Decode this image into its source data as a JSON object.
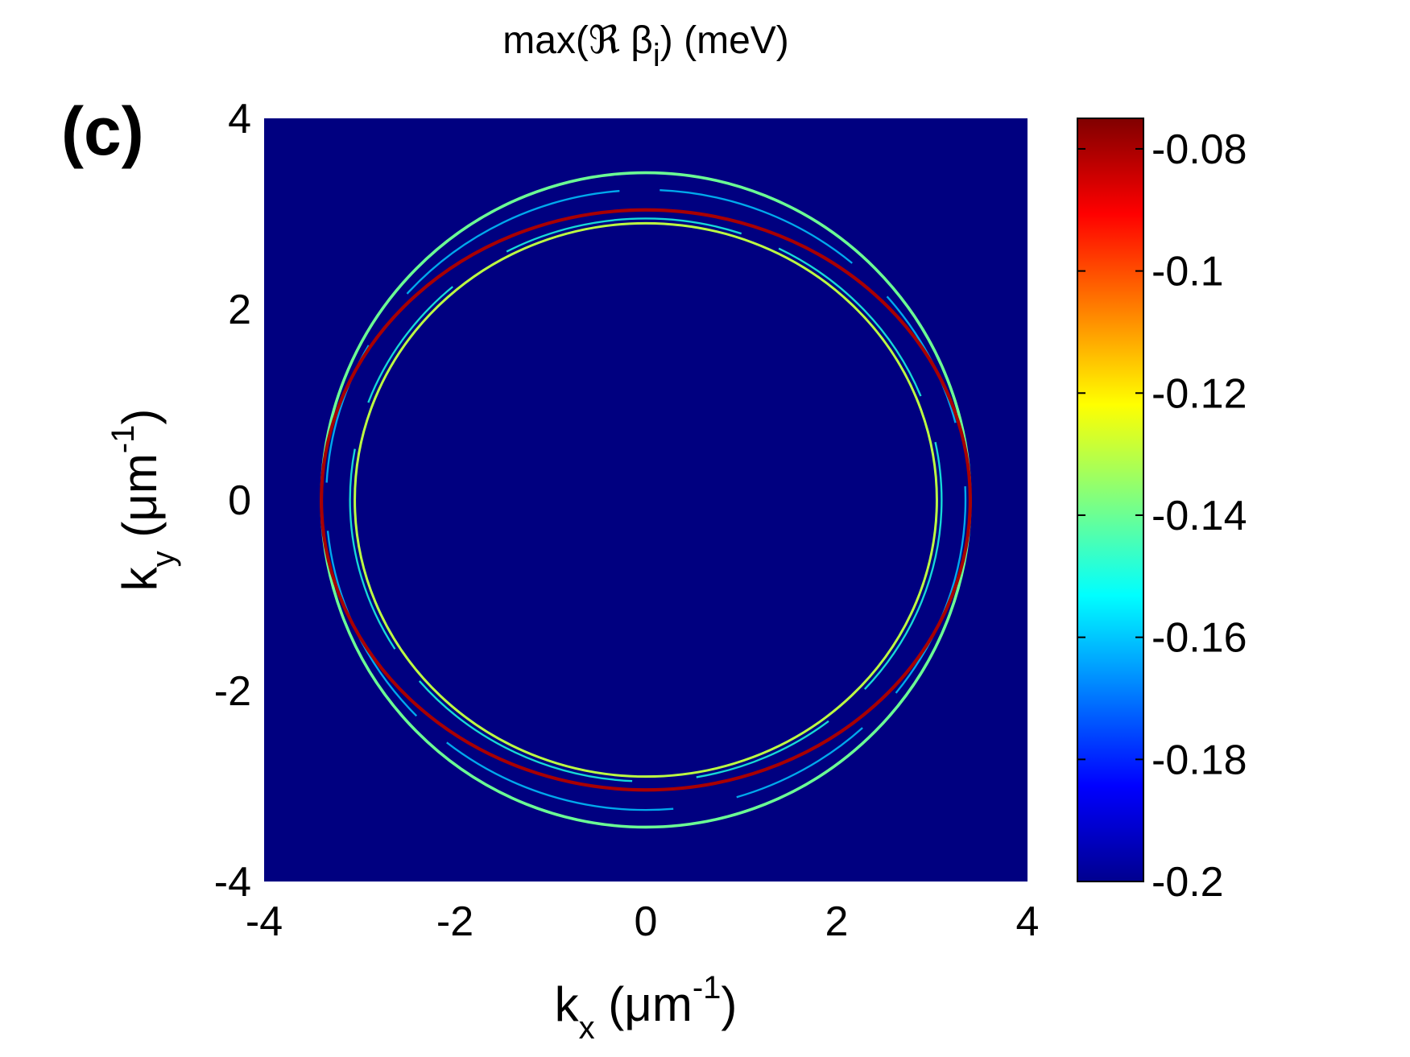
{
  "chart_data": {
    "type": "heatmap",
    "panel_label": "(c)",
    "title": {
      "prefix": "max(",
      "symbol": "ℜ",
      "var": " β",
      "sub": "i",
      "suffix": ") (meV)"
    },
    "xlabel": {
      "main": "k",
      "sub": "x",
      "unit": " (μm",
      "sup": "-1",
      "end": ")"
    },
    "ylabel": {
      "main": "k",
      "sub": "y",
      "unit": " (μm",
      "sup": "-1",
      "end": ")"
    },
    "xlim": [
      -4,
      4
    ],
    "ylim": [
      -4,
      4
    ],
    "x_ticks": [
      -4,
      -2,
      0,
      2,
      4
    ],
    "y_ticks": [
      -4,
      -2,
      0,
      2,
      4
    ],
    "x_tick_labels": [
      "-4",
      "-2",
      "0",
      "2",
      "4"
    ],
    "y_tick_labels": [
      "-4",
      "-2",
      "0",
      "2",
      "4"
    ],
    "colorbar": {
      "range": [
        -0.2,
        -0.075
      ],
      "ticks": [
        -0.08,
        -0.1,
        -0.12,
        -0.14,
        -0.16,
        -0.18,
        -0.2
      ],
      "tick_labels": [
        "-0.08",
        "-0.1",
        "-0.12",
        "-0.14",
        "-0.16",
        "-0.18",
        "-0.2"
      ],
      "colormap": "jet"
    },
    "background_value": -0.2,
    "background_color": "#000080",
    "rings": [
      {
        "radius_x": 3.4,
        "radius_y": 3.43,
        "value": -0.14,
        "width": 0.03,
        "style": "solid"
      },
      {
        "radius_x": 3.35,
        "radius_y": 3.25,
        "value": -0.16,
        "width": 0.02,
        "style": "broken"
      },
      {
        "radius_x": 3.4,
        "radius_y": 3.04,
        "value": -0.08,
        "width": 0.035,
        "style": "solid"
      },
      {
        "radius_x": 3.1,
        "radius_y": 2.95,
        "value": -0.15,
        "width": 0.02,
        "style": "broken"
      },
      {
        "radius_x": 3.05,
        "radius_y": 2.9,
        "value": -0.13,
        "width": 0.025,
        "style": "solid"
      }
    ],
    "grid": false,
    "legend": "none"
  }
}
